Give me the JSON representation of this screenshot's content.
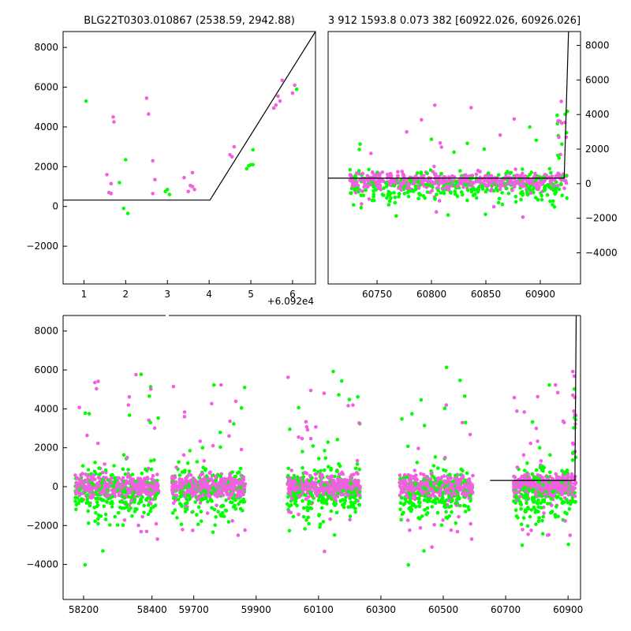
{
  "colors": {
    "magenta": "#f060e0",
    "green": "#00ff00",
    "model": "#000000"
  },
  "chart_data": [
    {
      "id": "top-left",
      "type": "scatter",
      "title": "BLG22T0303.010867 (2538.59, 2942.88)",
      "xlabel": "",
      "ylabel": "",
      "x_offset_label": "+6.092e4",
      "xlim": [
        0.5,
        6.55
      ],
      "ylim": [
        -3900,
        8800
      ],
      "xticks": [
        1,
        2,
        3,
        4,
        5,
        6
      ],
      "yticks": [
        -2000,
        0,
        2000,
        4000,
        6000,
        8000
      ],
      "series": [
        {
          "color": "magenta",
          "points": [
            [
              1.55,
              1600
            ],
            [
              1.6,
              700
            ],
            [
              1.65,
              650
            ],
            [
              1.65,
              1150
            ],
            [
              1.7,
              4500
            ],
            [
              1.72,
              4250
            ],
            [
              2.5,
              5450
            ],
            [
              2.55,
              4650
            ],
            [
              2.65,
              650
            ],
            [
              2.65,
              2300
            ],
            [
              2.7,
              1350
            ],
            [
              3.4,
              1450
            ],
            [
              3.5,
              750
            ],
            [
              3.55,
              1050
            ],
            [
              3.6,
              1000
            ],
            [
              3.6,
              1700
            ],
            [
              3.65,
              850
            ],
            [
              4.5,
              2600
            ],
            [
              4.55,
              2500
            ],
            [
              4.6,
              3000
            ],
            [
              5.55,
              4950
            ],
            [
              5.6,
              5100
            ],
            [
              5.65,
              5550
            ],
            [
              5.7,
              5300
            ],
            [
              5.75,
              6350
            ],
            [
              6.0,
              5700
            ],
            [
              6.05,
              6100
            ]
          ]
        },
        {
          "color": "green",
          "points": [
            [
              1.05,
              5300
            ],
            [
              1.85,
              1200
            ],
            [
              1.95,
              -100
            ],
            [
              2.0,
              2350
            ],
            [
              2.05,
              -350
            ],
            [
              2.95,
              750
            ],
            [
              3.0,
              850
            ],
            [
              3.05,
              600
            ],
            [
              4.9,
              1900
            ],
            [
              4.95,
              2050
            ],
            [
              5.0,
              2100
            ],
            [
              5.05,
              2100
            ],
            [
              5.05,
              2850
            ],
            [
              6.1,
              5900
            ]
          ]
        }
      ],
      "model": [
        [
          0.5,
          320
        ],
        [
          4.02,
          320
        ],
        [
          6.55,
          8800
        ]
      ]
    },
    {
      "id": "top-right",
      "type": "scatter",
      "title": "3 912 1593.8 0.073 382 [60922.026, 60926.026]",
      "xlabel": "",
      "ylabel": "",
      "xlim": [
        60705,
        60937
      ],
      "ylim": [
        -5800,
        8800
      ],
      "xticks": [
        60750,
        60800,
        60850,
        60900
      ],
      "yticks": [
        -4000,
        -2000,
        0,
        2000,
        4000,
        6000,
        8000
      ],
      "y_axis_side": "right",
      "model": [
        [
          60705,
          320
        ],
        [
          60922,
          320
        ],
        [
          60926,
          8800
        ]
      ]
    },
    {
      "id": "bottom",
      "type": "scatter",
      "title": "",
      "xlabel": "",
      "ylabel": "",
      "broken_axis": true,
      "ylim": [
        -5800,
        8800
      ],
      "yticks": [
        -4000,
        -2000,
        0,
        2000,
        4000,
        6000,
        8000
      ],
      "segments": [
        {
          "xlim": [
            58140,
            58440
          ],
          "xticks": [
            58200,
            58400
          ]
        },
        {
          "xlim": [
            59620,
            60940
          ],
          "xticks": [
            59700,
            59900,
            60100,
            60300,
            60500,
            60700,
            60900
          ]
        }
      ],
      "seasons": [
        {
          "segment": 0,
          "x": [
            58175,
            58420
          ]
        },
        {
          "segment": 1,
          "x": [
            59630,
            59865
          ]
        },
        {
          "segment": 1,
          "x": [
            60000,
            60235
          ]
        },
        {
          "segment": 1,
          "x": [
            60360,
            60595
          ]
        },
        {
          "segment": 1,
          "x": [
            60725,
            60926
          ]
        }
      ],
      "model": [
        [
          60650,
          320
        ],
        [
          60922,
          320
        ],
        [
          60926,
          8800
        ]
      ]
    }
  ]
}
